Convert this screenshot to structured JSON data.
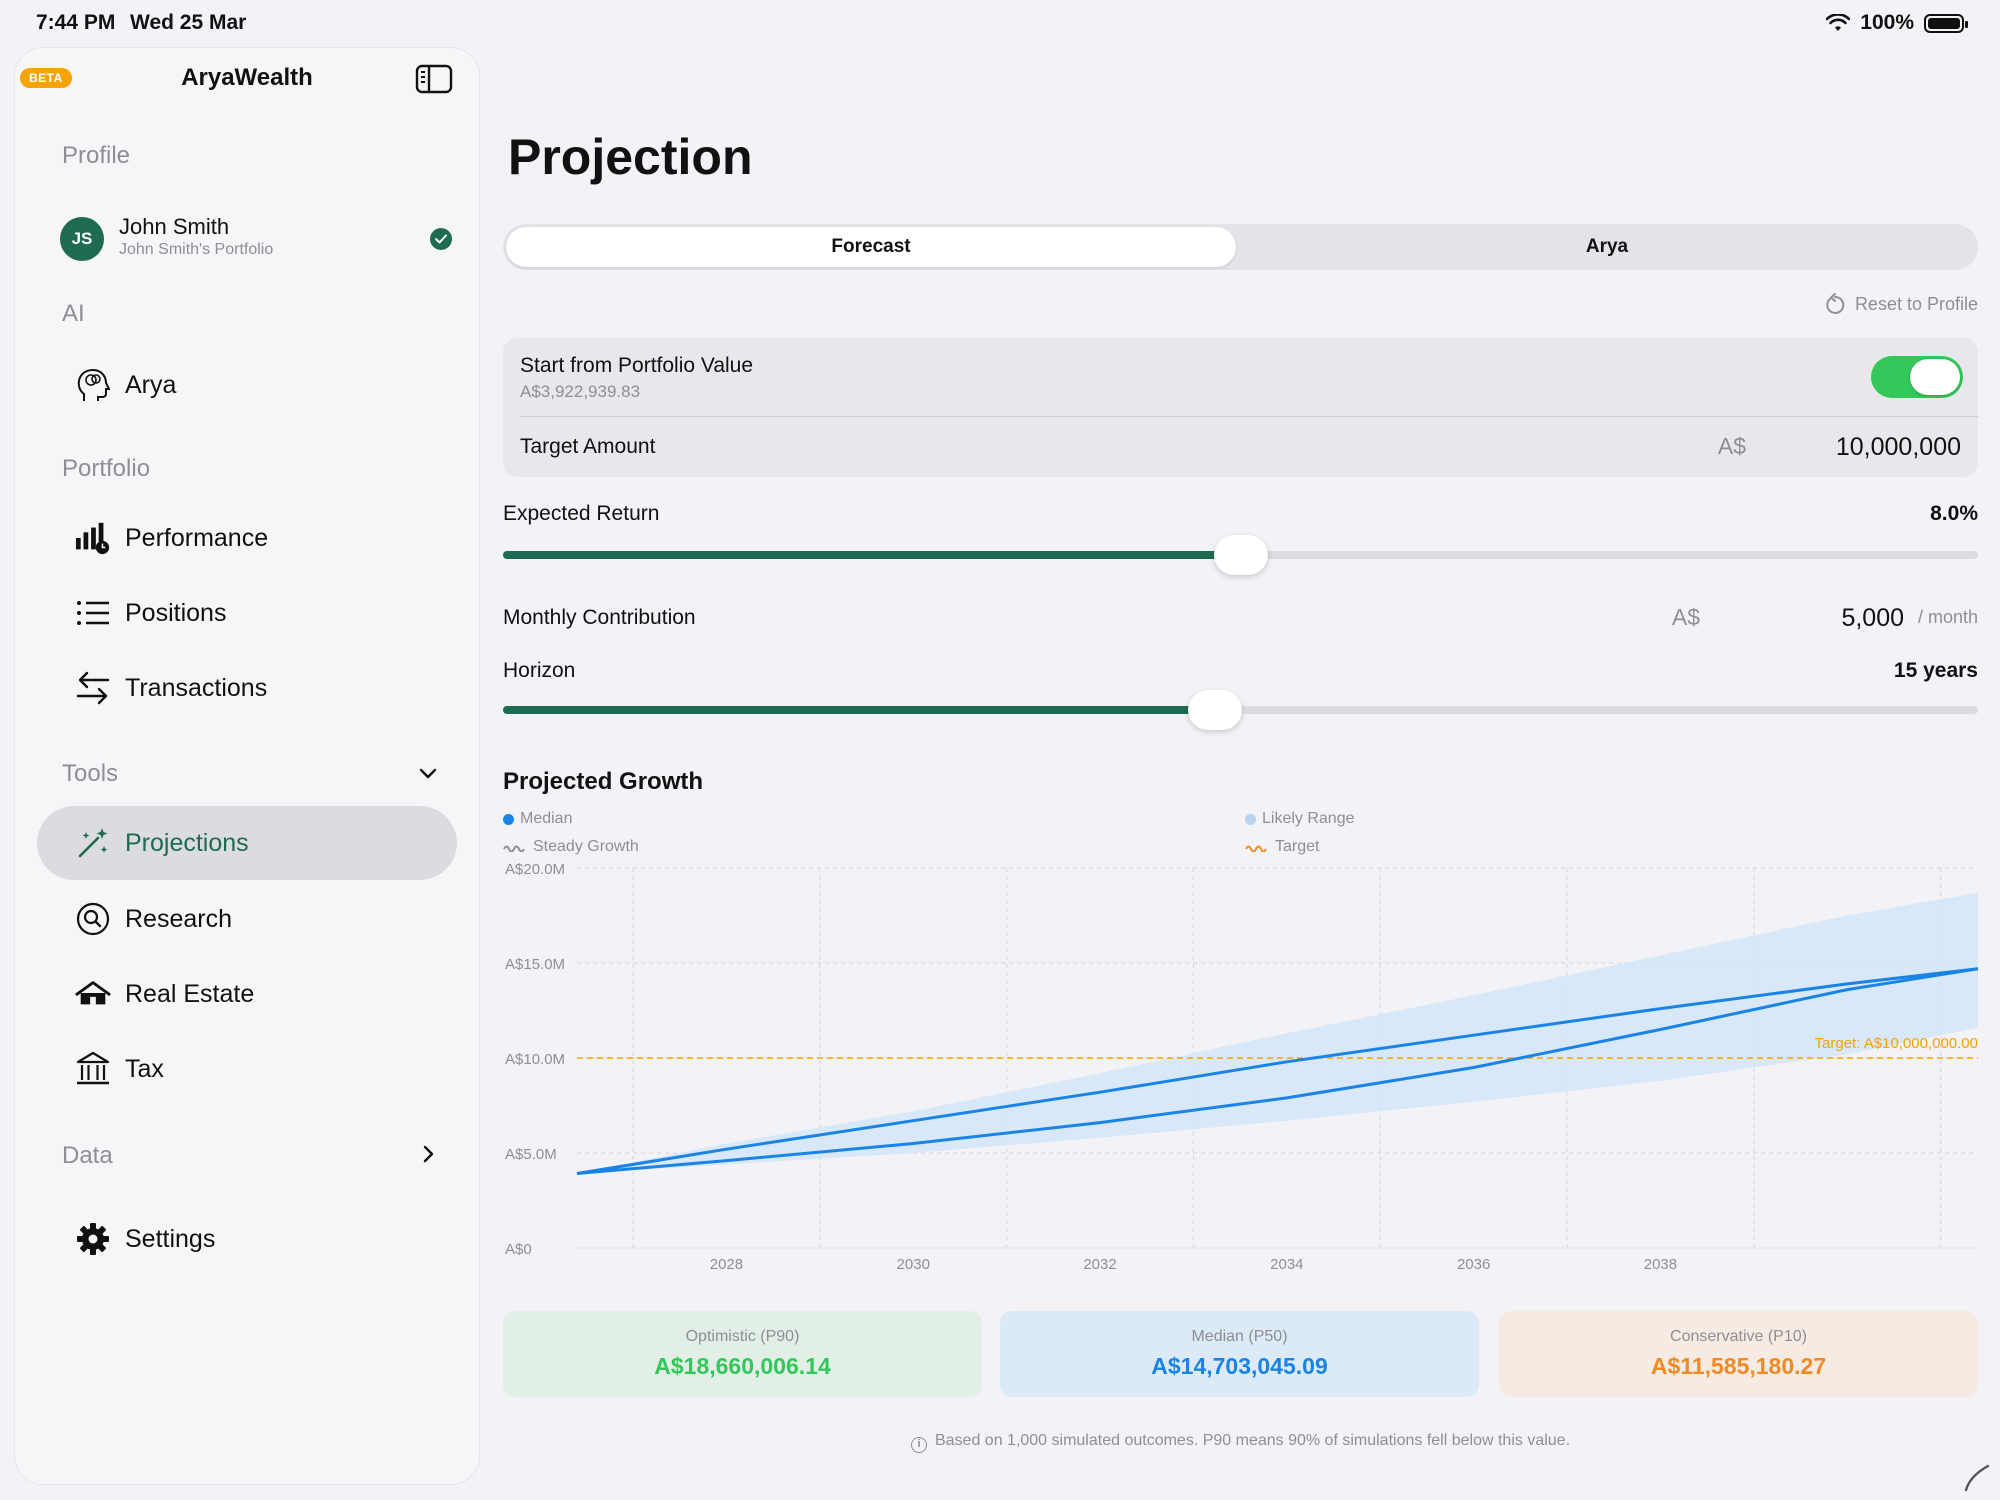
{
  "status_bar": {
    "time": "7:44 PM",
    "date": "Wed 25 Mar",
    "battery": "100%"
  },
  "sidebar": {
    "beta_badge": "BETA",
    "app_title": "AryaWealth",
    "sections": {
      "profile": "Profile",
      "ai": "AI",
      "portfolio": "Portfolio",
      "tools": "Tools",
      "data": "Data"
    },
    "profile": {
      "initials": "JS",
      "name": "John Smith",
      "portfolio_name": "John Smith's Portfolio"
    },
    "items": {
      "arya": "Arya",
      "performance": "Performance",
      "positions": "Positions",
      "transactions": "Transactions",
      "projections": "Projections",
      "research": "Research",
      "real_estate": "Real Estate",
      "tax": "Tax",
      "settings": "Settings"
    },
    "accent_color": "#1e6b4f"
  },
  "main": {
    "title": "Projection",
    "tabs": [
      {
        "label": "Forecast",
        "active": true
      },
      {
        "label": "Arya",
        "active": false
      }
    ],
    "reset_label": "Reset to Profile",
    "start_from": {
      "label": "Start from Portfolio Value",
      "value": "A$3,922,939.83",
      "enabled": true
    },
    "target": {
      "label": "Target Amount",
      "currency": "A$",
      "value": "10,000,000"
    },
    "expected_return": {
      "label": "Expected Return",
      "value": "8.0%",
      "slider_fraction": 0.5
    },
    "monthly_contribution": {
      "label": "Monthly Contribution",
      "currency": "A$",
      "value": "5,000",
      "unit": "/ month"
    },
    "horizon": {
      "label": "Horizon",
      "value": "15 years",
      "slider_fraction": 0.483
    }
  },
  "chart_data": {
    "type": "line",
    "title": "Projected Growth",
    "legend": [
      {
        "name": "Median",
        "color": "#1a84e6",
        "marker": "dot"
      },
      {
        "name": "Likely Range",
        "color": "#b7d5f3",
        "marker": "dot"
      },
      {
        "name": "Steady Growth",
        "color": "#8e8e93",
        "marker": "wavy"
      },
      {
        "name": "Target",
        "color": "#f5a300",
        "marker": "wavy"
      }
    ],
    "y_ticks": [
      "A$20.0M",
      "A$15.0M",
      "A$10.0M",
      "A$5.0M",
      "A$0"
    ],
    "x_ticks": [
      "2028",
      "2030",
      "2032",
      "2034",
      "2036",
      "2038"
    ],
    "ylim": [
      0,
      20
    ],
    "xlim": [
      2026.4,
      2041.4
    ],
    "target_label": "Target: A$10,000,000.00",
    "target_value": 10,
    "series": [
      {
        "name": "Median",
        "x": [
          2026.4,
          2028,
          2030,
          2032,
          2034,
          2036,
          2038,
          2040,
          2041.4
        ],
        "values": [
          3.92,
          4.6,
          5.5,
          6.6,
          7.9,
          9.5,
          11.5,
          13.6,
          14.7
        ]
      },
      {
        "name": "Steady Growth",
        "x": [
          2026.4,
          2028,
          2030,
          2032,
          2034,
          2036,
          2038,
          2040,
          2041.4
        ],
        "values": [
          3.92,
          5.2,
          6.7,
          8.2,
          9.8,
          11.2,
          12.6,
          13.9,
          14.7
        ]
      },
      {
        "name": "Likely Range Upper",
        "x": [
          2026.4,
          2028,
          2030,
          2032,
          2034,
          2036,
          2038,
          2040,
          2041.4
        ],
        "values": [
          3.92,
          5.5,
          7.2,
          9.2,
          11.3,
          13.3,
          15.4,
          17.5,
          18.7
        ]
      },
      {
        "name": "Likely Range Lower",
        "x": [
          2026.4,
          2028,
          2030,
          2032,
          2034,
          2036,
          2038,
          2040,
          2041.4
        ],
        "values": [
          3.92,
          4.4,
          5.0,
          5.8,
          6.7,
          7.7,
          8.8,
          10.2,
          11.6
        ]
      }
    ],
    "grid": true
  },
  "stats": {
    "optimistic": {
      "label": "Optimistic (P90)",
      "value": "A$18,660,006.14",
      "color": "#34c759",
      "bg": "#e1efe7"
    },
    "median": {
      "label": "Median (P50)",
      "value": "A$14,703,045.09",
      "color": "#1a84e6",
      "bg": "#dce9f7"
    },
    "conservative": {
      "label": "Conservative (P10)",
      "value": "A$11,585,180.27",
      "color": "#f08a24",
      "bg": "#f5ebe2"
    }
  },
  "footnote": "Based on 1,000 simulated outcomes. P90 means 90% of simulations fell below this value."
}
